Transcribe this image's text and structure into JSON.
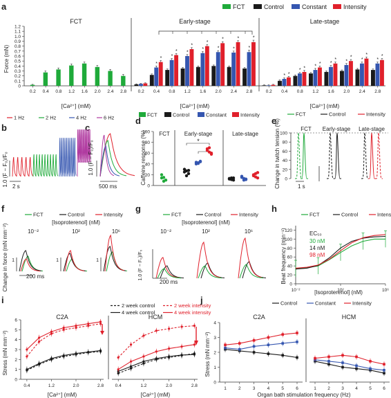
{
  "colors": {
    "fct": "#1faa3a",
    "control": "#1a1a1a",
    "constant": "#3556b0",
    "intensity": "#e0202b",
    "pacing_1hz": "#e0202b",
    "pacing_2hz": "#1faa3a",
    "pacing_4hz": "#3556b0",
    "pacing_6hz": "#b03aa0"
  },
  "panels": {
    "a": "a",
    "b": "b",
    "c": "c",
    "d": "d",
    "e": "e",
    "f": "f",
    "g": "g",
    "h": "h",
    "i": "i",
    "j": "j"
  },
  "legend": {
    "fct": "FCT",
    "control": "Control",
    "constant": "Constant",
    "intensity": "Intensity"
  },
  "panel_a": {
    "ylabel": "Force (mN)",
    "xlabel": "[Ca²⁺] (mM)",
    "section_labels": [
      "FCT",
      "Early-stage",
      "Late-stage"
    ],
    "ca_ticks": [
      "0.2",
      "0.4",
      "0.8",
      "1.2",
      "1.6",
      "2.0",
      "2.4",
      "2.8"
    ],
    "y_ticks": [
      "0",
      "0.1",
      "0.2",
      "0.3",
      "0.4",
      "0.5",
      "0.6",
      "0.7",
      "0.8",
      "0.9",
      "1.0",
      "1.1",
      "1.2"
    ]
  },
  "panel_b": {
    "legend": [
      "1 Hz",
      "2 Hz",
      "4 Hz",
      "6 Hz"
    ],
    "scale_time": "2 s",
    "ylabel": "1.0 (F − F₀)/F₀"
  },
  "panel_c": {
    "scale_time": "500 ms",
    "ylabel": "1.0 (F − F₀)/F₀"
  },
  "panel_d": {
    "ylabel": "Caffeine response (%)",
    "section_labels": [
      "FCT",
      "Early-stage",
      "Late-stage"
    ],
    "y_ticks": [
      "0",
      "20",
      "40",
      "60",
      "80",
      "100"
    ],
    "sig": [
      "*",
      "*"
    ]
  },
  "panel_e": {
    "ylabel": "Change in twitch tension (%)",
    "section_labels": [
      "FCT",
      "Early-stage",
      "Late-stage"
    ],
    "y_ticks": [
      "0",
      "20",
      "40",
      "60",
      "80",
      "100"
    ],
    "scale_time": "1 s"
  },
  "panel_f": {
    "subtitle": "[Isoproterenol] (nM)",
    "doses": [
      "10⁻²",
      "10²",
      "10⁶"
    ],
    "ylabel": "Change in force (mN mm⁻²)",
    "scale_y": "1",
    "scale_time": "200 ms"
  },
  "panel_g": {
    "subtitle": "[Isoproterenol] (nM)",
    "doses": [
      "10⁻²",
      "10²",
      "10⁶"
    ],
    "scale_y": "1.0 (F − F₀)/F₀",
    "scale_time": "200 ms"
  },
  "panel_h": {
    "ylabel": "Beat frequency (min⁻¹)",
    "xlabel": "[Isoproterenol] (nM)",
    "ec50_title": "EC₅₀",
    "ec50_values": [
      "30 nM",
      "14 nM",
      "98 nM"
    ],
    "y_ticks": [
      "0",
      "20",
      "40",
      "60",
      "80",
      "100",
      "120"
    ],
    "x_ticks": [
      "10⁻²",
      "10²",
      "10⁶"
    ]
  },
  "panel_i": {
    "legend": [
      "2 week control",
      "2 week intensity",
      "4 week control",
      "4 week intensity"
    ],
    "titles": [
      "C2A",
      "HCM"
    ],
    "ylabel": "Stress (mN mm⁻²)",
    "xlabel": "[Ca²⁺] (mM)",
    "y_ticks": [
      "0",
      "1",
      "2",
      "3",
      "4",
      "5",
      "6"
    ],
    "x_ticks": [
      "0.4",
      "1.2",
      "2.0",
      "2.8"
    ]
  },
  "panel_j": {
    "titles": [
      "C2A",
      "HCM"
    ],
    "ylabel": "Stress (mN mm⁻²)",
    "xlabel": "Organ bath stimulation frequency (Hz)",
    "y_ticks": [
      "0",
      "1",
      "2",
      "3",
      "4"
    ],
    "x_ticks": [
      "1",
      "2",
      "3",
      "4",
      "5",
      "6"
    ]
  },
  "chart_data": [
    {
      "panel": "a",
      "type": "bar",
      "ylabel": "Force (mN)",
      "xlabel": "[Ca²⁺] (mM)",
      "ylim": [
        0,
        1.2
      ],
      "categories": [
        "0.2",
        "0.4",
        "0.8",
        "1.2",
        "1.6",
        "2.0",
        "2.4",
        "2.8"
      ],
      "groups": [
        {
          "name": "FCT",
          "series": [
            {
              "name": "FCT",
              "values": [
                0.02,
                0.27,
                0.33,
                0.41,
                0.45,
                0.38,
                0.3,
                0.2
              ],
              "errors": [
                0.01,
                0.03,
                0.03,
                0.03,
                0.03,
                0.03,
                0.03,
                0.03
              ]
            }
          ]
        },
        {
          "name": "Early-stage",
          "series": [
            {
              "name": "Control",
              "values": [
                0.03,
                0.22,
                0.32,
                0.35,
                0.38,
                0.4,
                0.38,
                0.35
              ],
              "errors": [
                0.01,
                0.02,
                0.02,
                0.02,
                0.02,
                0.02,
                0.02,
                0.02
              ]
            },
            {
              "name": "Constant",
              "values": [
                0.04,
                0.37,
                0.52,
                0.6,
                0.66,
                0.68,
                0.67,
                0.68
              ],
              "errors": [
                0.01,
                0.03,
                0.03,
                0.03,
                0.03,
                0.03,
                0.03,
                0.04
              ]
            },
            {
              "name": "Intensity",
              "values": [
                0.05,
                0.48,
                0.62,
                0.74,
                0.8,
                0.86,
                0.88,
                0.88
              ],
              "errors": [
                0.01,
                0.03,
                0.03,
                0.03,
                0.03,
                0.03,
                0.03,
                0.04
              ]
            }
          ]
        },
        {
          "name": "Late-stage",
          "series": [
            {
              "name": "Control",
              "values": [
                0.01,
                0.1,
                0.2,
                0.25,
                0.28,
                0.3,
                0.33,
                0.32
              ],
              "errors": [
                0.01,
                0.02,
                0.02,
                0.02,
                0.02,
                0.02,
                0.02,
                0.02
              ]
            },
            {
              "name": "Constant",
              "values": [
                0.01,
                0.14,
                0.25,
                0.32,
                0.38,
                0.42,
                0.45,
                0.45
              ],
              "errors": [
                0.01,
                0.02,
                0.02,
                0.03,
                0.03,
                0.03,
                0.03,
                0.03
              ]
            },
            {
              "name": "Intensity",
              "values": [
                0.02,
                0.17,
                0.28,
                0.37,
                0.45,
                0.5,
                0.55,
                0.52
              ],
              "errors": [
                0.01,
                0.02,
                0.03,
                0.03,
                0.03,
                0.03,
                0.03,
                0.03
              ]
            }
          ]
        }
      ]
    },
    {
      "panel": "d",
      "type": "scatter",
      "ylabel": "Caffeine response (%)",
      "ylim": [
        0,
        100
      ],
      "groups": [
        {
          "name": "FCT",
          "series": [
            {
              "name": "FCT",
              "values": [
                20,
                15,
                10,
                14,
                8
              ]
            }
          ]
        },
        {
          "name": "Early-stage",
          "series": [
            {
              "name": "Control",
              "values": [
                30,
                27,
                22,
                25,
                18,
                28
              ]
            },
            {
              "name": "Constant",
              "values": [
                40,
                42,
                44,
                43,
                41,
                45
              ]
            },
            {
              "name": "Intensity",
              "values": [
                68,
                62,
                60,
                65,
                70,
                58
              ]
            }
          ]
        },
        {
          "name": "Late-stage",
          "series": [
            {
              "name": "Control",
              "values": [
                12,
                14,
                10,
                13,
                11,
                14
              ]
            },
            {
              "name": "Constant",
              "values": [
                15,
                10,
                12,
                17,
                13,
                11
              ]
            },
            {
              "name": "Intensity",
              "values": [
                18,
                22,
                14,
                20,
                16,
                24
              ]
            }
          ]
        }
      ]
    },
    {
      "panel": "h",
      "type": "line",
      "xlabel": "[Isoproterenol] (nM)",
      "ylabel": "Beat frequency (min⁻¹)",
      "ylim": [
        0,
        130
      ],
      "xscale": "log",
      "x": [
        0.01,
        0.1,
        1,
        10,
        100,
        1000,
        10000,
        100000,
        1000000
      ],
      "series": [
        {
          "name": "FCT",
          "values": [
            34,
            36,
            40,
            54,
            70,
            85,
            95,
            100,
            100
          ]
        },
        {
          "name": "Control",
          "values": [
            33,
            35,
            41,
            58,
            80,
            95,
            102,
            105,
            106
          ]
        },
        {
          "name": "Intensity",
          "values": [
            35,
            37,
            42,
            55,
            74,
            92,
            103,
            108,
            110
          ]
        }
      ]
    },
    {
      "panel": "i",
      "type": "line",
      "xlabel": "[Ca²⁺] (mM)",
      "ylabel": "Stress (mN mm⁻²)",
      "ylim": [
        0,
        6
      ],
      "x": [
        0.4,
        0.8,
        1.2,
        1.6,
        2.0,
        2.4,
        2.8
      ],
      "plots": [
        {
          "title": "C2A",
          "series": [
            {
              "name": "2 week control",
              "values": [
                0.9,
                1.5,
                2.0,
                2.3,
                2.5,
                2.7,
                2.8
              ]
            },
            {
              "name": "2 week intensity",
              "values": [
                2.3,
                3.8,
                4.6,
                5.0,
                5.2,
                5.4,
                5.6
              ]
            },
            {
              "name": "4 week control",
              "values": [
                1.0,
                1.6,
                2.1,
                2.4,
                2.6,
                2.75,
                2.9
              ]
            },
            {
              "name": "4 week intensity",
              "values": [
                3.0,
                4.2,
                4.8,
                5.2,
                5.4,
                5.6,
                5.8
              ]
            }
          ]
        },
        {
          "title": "HCM",
          "series": [
            {
              "name": "2 week control",
              "values": [
                0.6,
                1.1,
                1.6,
                2.0,
                2.2,
                2.4,
                2.6
              ]
            },
            {
              "name": "2 week intensity",
              "values": [
                2.2,
                3.5,
                4.4,
                4.9,
                5.1,
                5.3,
                5.4
              ]
            },
            {
              "name": "4 week control",
              "values": [
                0.8,
                1.3,
                1.8,
                2.1,
                2.3,
                2.45,
                2.5
              ]
            },
            {
              "name": "4 week intensity",
              "values": [
                1.0,
                1.8,
                2.3,
                2.8,
                3.1,
                3.3,
                3.5
              ]
            }
          ]
        }
      ]
    },
    {
      "panel": "j",
      "type": "line",
      "xlabel": "Organ bath stimulation frequency (Hz)",
      "ylabel": "Stress (mN mm⁻²)",
      "ylim": [
        0,
        4
      ],
      "x": [
        1,
        2,
        3,
        4,
        5,
        6
      ],
      "plots": [
        {
          "title": "C2A",
          "series": [
            {
              "name": "Control",
              "values": [
                2.2,
                2.1,
                2.0,
                1.9,
                1.8,
                1.65
              ]
            },
            {
              "name": "Constant",
              "values": [
                2.3,
                2.2,
                2.4,
                2.5,
                2.6,
                2.7
              ]
            },
            {
              "name": "Intensity",
              "values": [
                2.5,
                2.6,
                2.8,
                3.0,
                3.2,
                3.3
              ]
            }
          ]
        },
        {
          "title": "HCM",
          "series": [
            {
              "name": "Control",
              "values": [
                1.4,
                1.2,
                1.0,
                0.9,
                0.8,
                0.6
              ]
            },
            {
              "name": "Constant",
              "values": [
                1.5,
                1.4,
                1.3,
                1.1,
                0.9,
                0.8
              ]
            },
            {
              "name": "Intensity",
              "values": [
                1.6,
                1.7,
                1.8,
                1.7,
                1.4,
                1.2
              ]
            }
          ]
        }
      ]
    }
  ]
}
